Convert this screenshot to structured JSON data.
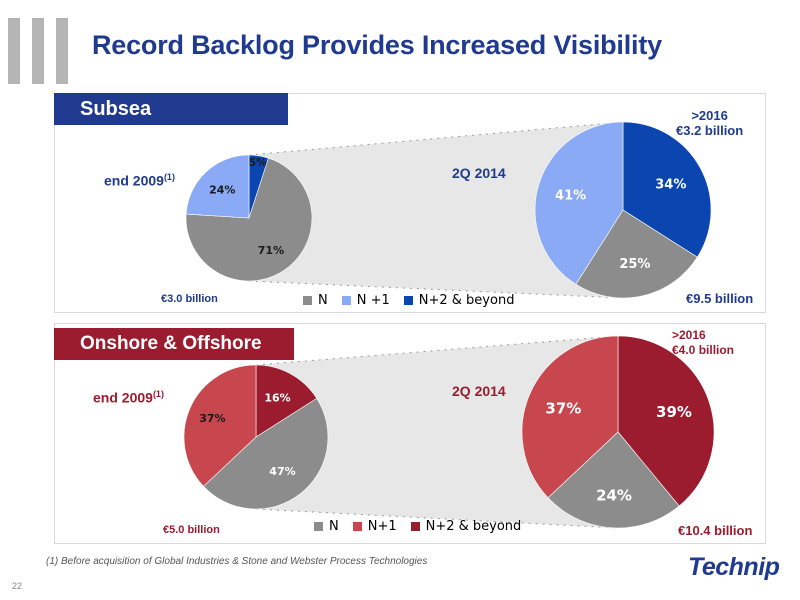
{
  "header": {
    "title": "Record Backlog Provides Increased Visibility"
  },
  "colors": {
    "title": "#1f3a8f",
    "subsea_banner": "#1f3a8f",
    "onshore_banner": "#9b1c2e",
    "N": "#8c8c8c",
    "subsea_n1": "#8aaaf5",
    "subsea_n2": "#0b45b0",
    "onshore_n1": "#c8474f",
    "onshore_n2": "#9b1c2e"
  },
  "subsea": {
    "section_label": "Subsea",
    "left_title": "end 2009",
    "left_title_note": "(1)",
    "left_total": "€3.0 billion",
    "right_title": "2Q 2014",
    "right_total": "€9.5 billion",
    "beyond_line1": ">2016",
    "beyond_line2": "€3.2 billion",
    "legend": [
      "N",
      "N +1",
      "N+2 & beyond"
    ]
  },
  "onshore": {
    "section_label": "Onshore & Offshore",
    "left_title": "end 2009",
    "left_title_note": "(1)",
    "left_total": "€5.0 billion",
    "right_title": "2Q 2014",
    "right_total": "€10.4 billion",
    "beyond_line1": ">2016",
    "beyond_line2": "€4.0 billion",
    "legend": [
      "N",
      "N+1",
      "N+2 & beyond"
    ]
  },
  "chart_data": [
    {
      "type": "pie",
      "title": "end 2009",
      "categories": [
        "N",
        "N +1",
        "N+2 & beyond"
      ],
      "values": [
        71,
        24,
        5
      ],
      "labels": [
        "71%",
        "24%",
        "5%"
      ]
    },
    {
      "type": "pie",
      "title": "2Q 2014",
      "categories": [
        "N",
        "N +1",
        "N+2 & beyond"
      ],
      "values": [
        25,
        41,
        34
      ],
      "labels": [
        "25%",
        "41%",
        "34%"
      ]
    },
    {
      "type": "pie",
      "title": "end 2009",
      "categories": [
        "N",
        "N+1",
        "N+2 & beyond"
      ],
      "values": [
        47,
        37,
        16
      ],
      "labels": [
        "47%",
        "37%",
        "16%"
      ]
    },
    {
      "type": "pie",
      "title": "2Q 2014",
      "categories": [
        "N",
        "N+1",
        "N+2 & beyond"
      ],
      "values": [
        24,
        37,
        39
      ],
      "labels": [
        "24%",
        "37%",
        "39%"
      ]
    }
  ],
  "footer": {
    "footnote": "(1) Before acquisition of Global Industries & Stone and Webster Process Technologies",
    "page_number": "22",
    "logo_text": "Technip"
  }
}
